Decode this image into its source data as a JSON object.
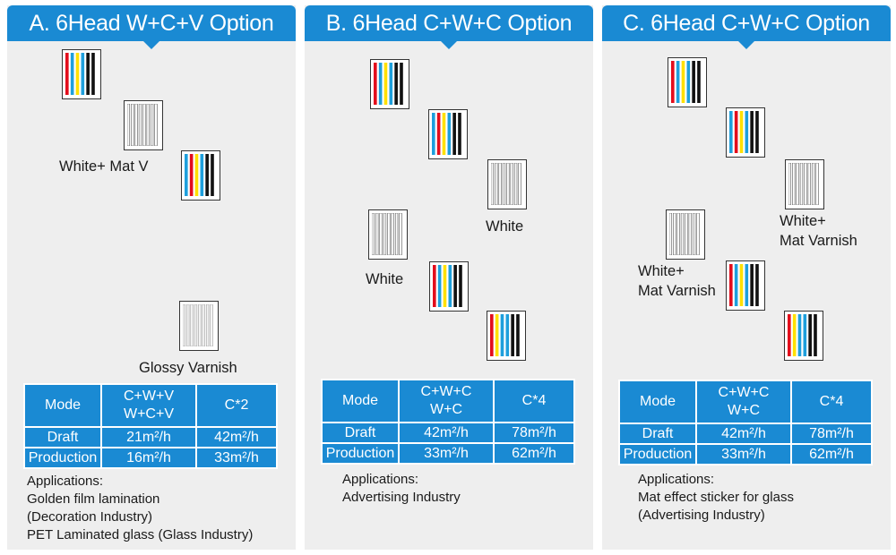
{
  "panels": [
    {
      "title": "A. 6Head W+C+V Option",
      "labels": [
        "White+ Mat V",
        "Glossy Varnish"
      ],
      "table": {
        "header": [
          "Mode",
          "C+W+V",
          "W+C+V",
          "C*2"
        ],
        "rows": [
          [
            "Draft",
            "21m²/h",
            "42m²/h"
          ],
          [
            "Production",
            "16m²/h",
            "33m²/h"
          ]
        ]
      },
      "applications_title": "Applications:",
      "applications": [
        "Golden film lamination",
        "(Decoration Industry)",
        "PET Laminated glass  (Glass Industry)"
      ]
    },
    {
      "title": "B. 6Head C+W+C Option",
      "labels": [
        "White",
        "White"
      ],
      "table": {
        "header": [
          "Mode",
          "C+W+C",
          "W+C",
          "C*4"
        ],
        "rows": [
          [
            "Draft",
            "42m²/h",
            "78m²/h"
          ],
          [
            "Production",
            "33m²/h",
            "62m²/h"
          ]
        ]
      },
      "applications_title": "Applications:",
      "applications": [
        "Advertising Industry"
      ]
    },
    {
      "title": "C. 6Head C+W+C Option",
      "labels": [
        "White+",
        "Mat Varnish",
        "White+",
        "Mat Varnish"
      ],
      "table": {
        "header": [
          "Mode",
          "C+W+C",
          "W+C",
          "C*4"
        ],
        "rows": [
          [
            "Draft",
            "42m²/h",
            "78m²/h"
          ],
          [
            "Production",
            "33m²/h",
            "62m²/h"
          ]
        ]
      },
      "applications_title": "Applications:",
      "applications": [
        "Mat effect sticker for glass",
        "(Advertising Industry)"
      ]
    }
  ],
  "head_types": {
    "color": "cmyk-printhead-icon",
    "white": "white-printhead-icon",
    "varnish": "varnish-printhead-icon"
  },
  "colors": {
    "accent": "#1a8ad3",
    "panel_bg": "#eeeeee",
    "cyan": "#1e9fdc",
    "magenta": "#e6197e",
    "yellow": "#ffe000",
    "red": "#e30d1c",
    "black": "#111111"
  }
}
